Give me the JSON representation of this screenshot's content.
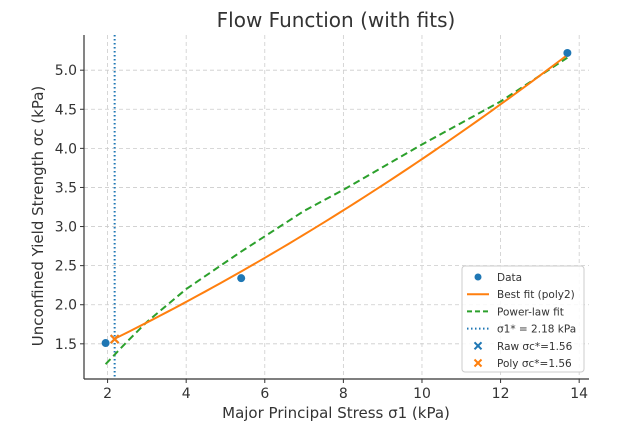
{
  "chart_data": {
    "type": "line",
    "title": "Flow Function (with fits)",
    "xlabel": "Major Principal Stress σ1 (kPa)",
    "ylabel": "Unconfined Yield Strength σc (kPa)",
    "xlim": [
      1.4,
      14.25
    ],
    "ylim": [
      1.05,
      5.45
    ],
    "xticks": [
      2,
      4,
      6,
      8,
      10,
      12,
      14
    ],
    "yticks": [
      1.5,
      2.0,
      2.5,
      3.0,
      3.5,
      4.0,
      4.5,
      5.0
    ],
    "ytick_labels": [
      "1.5",
      "2.0",
      "2.5",
      "3.0",
      "3.5",
      "4.0",
      "4.5",
      "5.0"
    ],
    "grid": true,
    "legend_position": "lower right",
    "data_points": {
      "name": "Data",
      "color": "#1f77b4",
      "x": [
        1.95,
        5.4,
        13.7
      ],
      "y": [
        1.51,
        2.34,
        5.22
      ]
    },
    "poly_fit": {
      "name": "Best fit (poly2)",
      "color": "#ff7f0e",
      "coefficients": [
        1.0495,
        0.2237,
        0.00576
      ],
      "x_range": [
        2.18,
        13.7
      ]
    },
    "power_fit": {
      "name": "Power-law fit",
      "color": "#2ca02c",
      "x": [
        1.95,
        2.5,
        3.0,
        4.0,
        5.4,
        7.0,
        8.0,
        10.0,
        12.0,
        13.7
      ],
      "y": [
        1.24,
        1.53,
        1.78,
        2.2,
        2.68,
        3.2,
        3.47,
        4.05,
        4.6,
        5.16
      ]
    },
    "sigma1_star": {
      "name": "σ1* = 2.18 kPa",
      "color": "#1f77b4",
      "x": 2.18
    },
    "raw_marker": {
      "name": "Raw σc*=1.56",
      "color": "#1f77b4",
      "x": 2.18,
      "y": 1.56
    },
    "poly_marker": {
      "name": "Poly σc*=1.56",
      "color": "#ff7f0e",
      "x": 2.18,
      "y": 1.56
    }
  }
}
